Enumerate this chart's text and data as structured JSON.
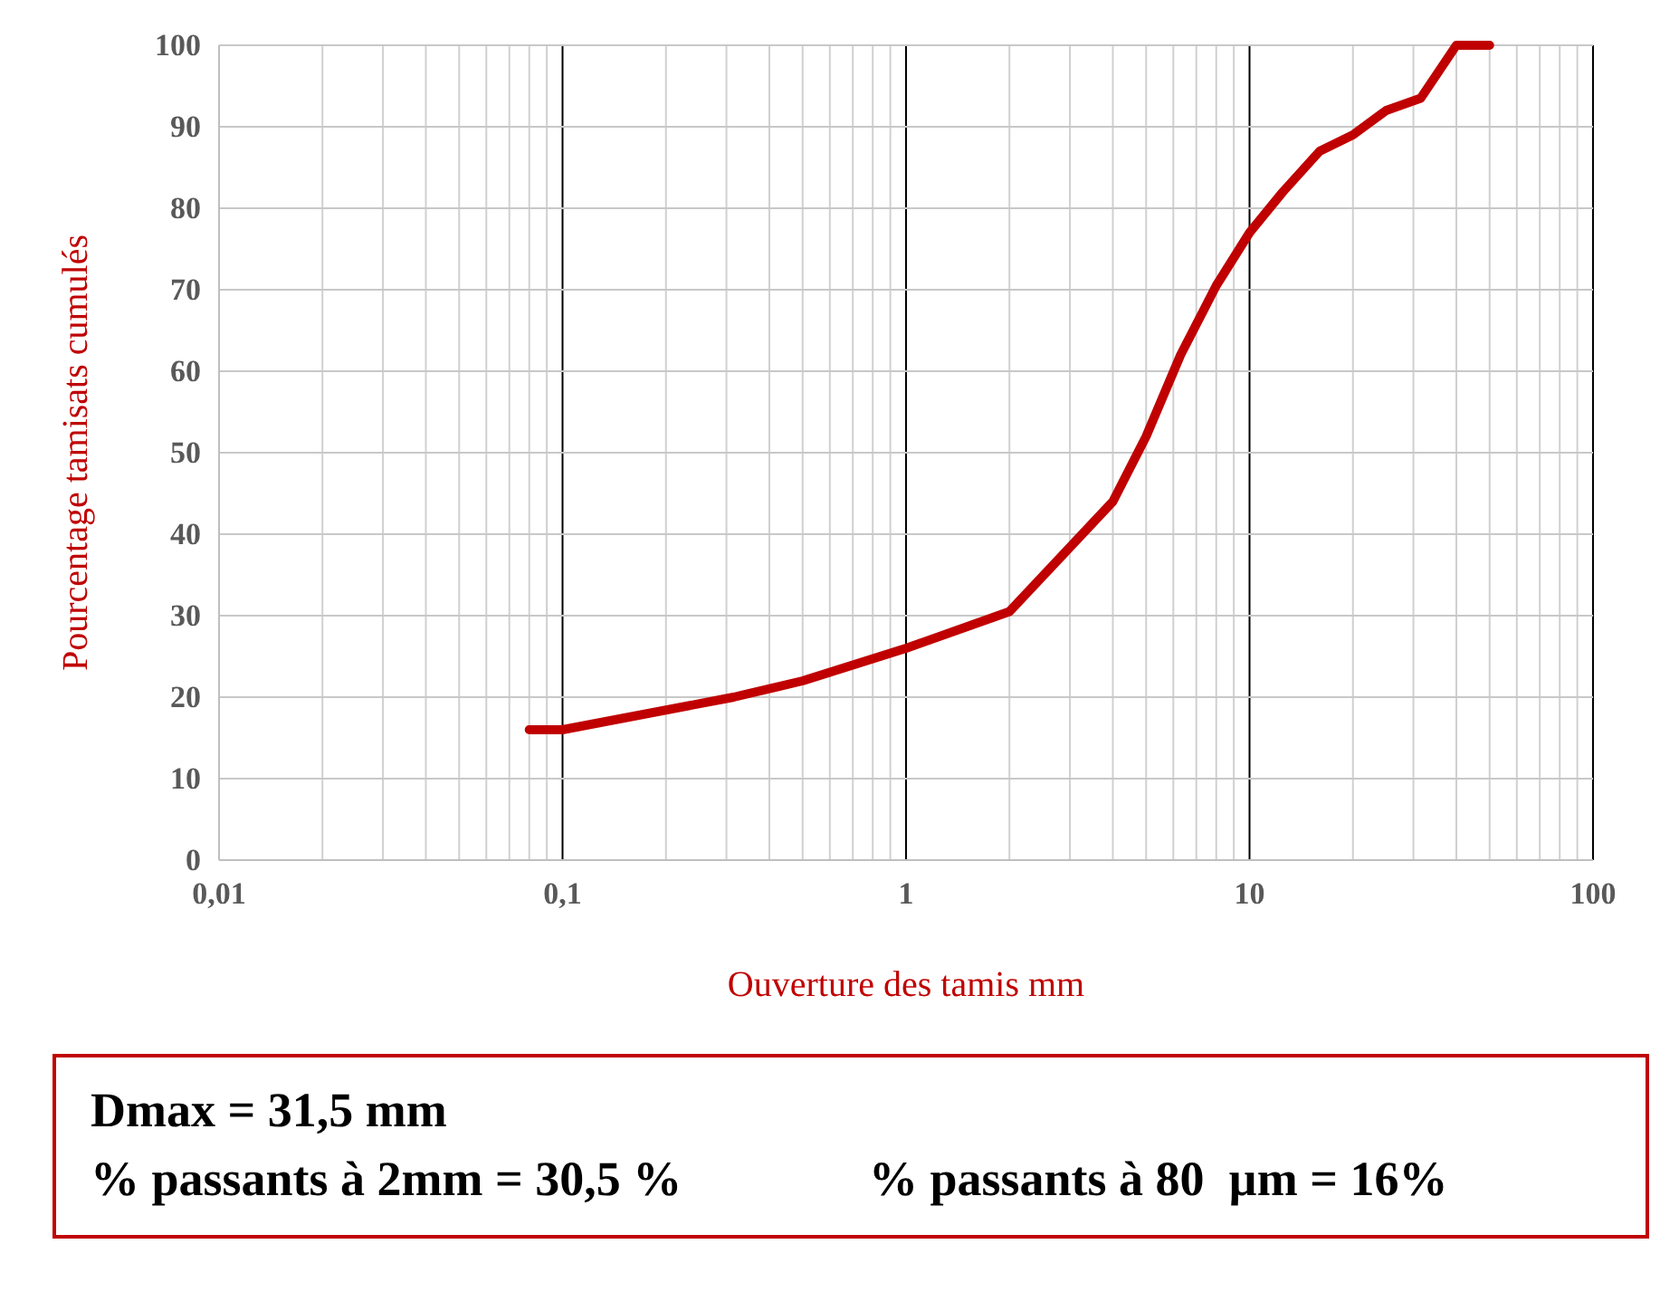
{
  "chart_data": {
    "type": "line",
    "log": "x",
    "grid": true,
    "marker": "none",
    "line_style": "solid",
    "xlabel": "Ouverture des tamis mm",
    "ylabel": "Pourcentage tamisats cumulés",
    "x": [
      0.08,
      0.1,
      0.315,
      0.5,
      1,
      2,
      4,
      5,
      6.3,
      8,
      10,
      12.5,
      16,
      20,
      25,
      31.5,
      40,
      50
    ],
    "series": [
      {
        "color": "#c00000",
        "values": [
          16,
          16,
          20,
          22,
          26,
          30.5,
          44,
          52,
          62,
          70.5,
          77,
          82,
          87,
          89,
          92,
          93.5,
          100,
          100
        ]
      }
    ],
    "xlim": [
      0.01,
      100
    ],
    "xticks": [
      {
        "value": 0.01,
        "label": "0,01"
      },
      {
        "value": 0.1,
        "label": "0,1"
      },
      1,
      10,
      100
    ],
    "ylim": [
      0,
      100
    ],
    "yticks": [
      0,
      10,
      20,
      30,
      40,
      50,
      60,
      70,
      80,
      90,
      100
    ],
    "annotations": [
      "Dmax = 31,5 mm",
      "% passants à 2mm = 30,5 %",
      "% passants à 80  µm = 16%"
    ]
  }
}
